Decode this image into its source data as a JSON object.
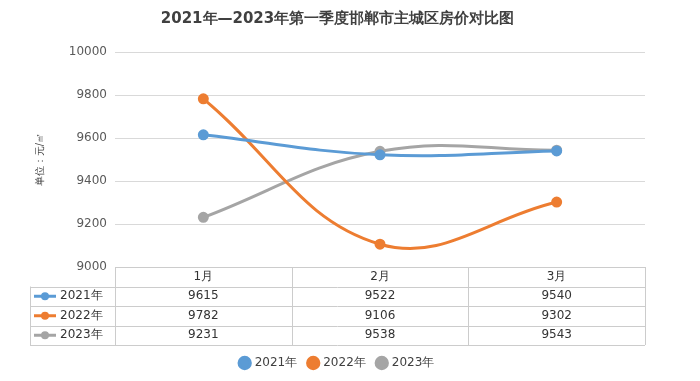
{
  "chart_data": {
    "type": "line",
    "title": "2021年—2023年第一季度邯郸市主城区房价对比图",
    "y_label": "单位：元/㎡",
    "categories": [
      "1月",
      "2月",
      "3月"
    ],
    "series": [
      {
        "name": "2021年",
        "color": "#5b9bd5",
        "values": [
          9615,
          9522,
          9540
        ]
      },
      {
        "name": "2022年",
        "color": "#ed7d31",
        "values": [
          9782,
          9106,
          9302
        ]
      },
      {
        "name": "2023年",
        "color": "#a5a5a5",
        "values": [
          9231,
          9538,
          9543
        ]
      }
    ],
    "ylim": [
      9000,
      10000
    ],
    "yticks": [
      9000,
      9200,
      9400,
      9600,
      9800,
      10000
    ],
    "grid": true,
    "legend": "bottom",
    "data_labels": true
  }
}
